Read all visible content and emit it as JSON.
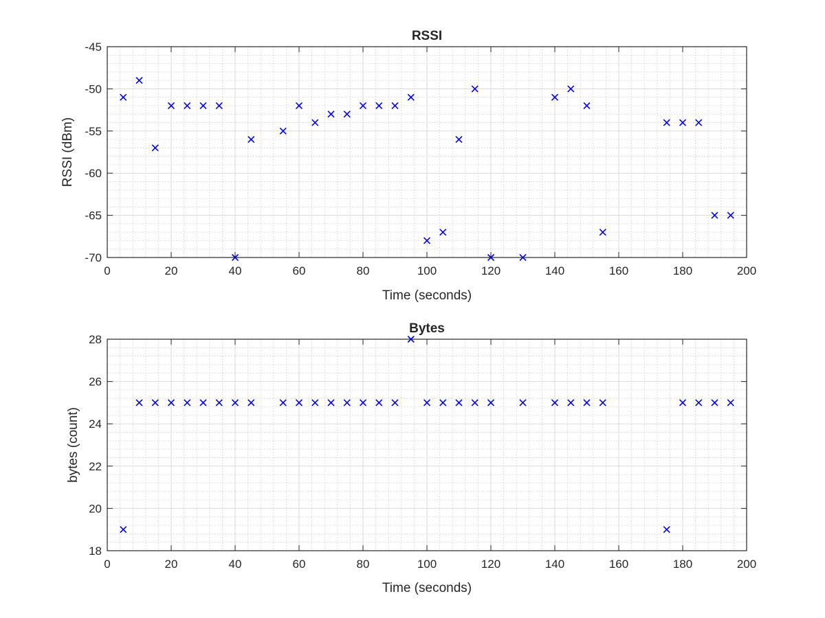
{
  "chart_data": [
    {
      "type": "scatter",
      "id": "rssi",
      "title": "RSSI",
      "xlabel": "Time (seconds)",
      "ylabel": "RSSI (dBm)",
      "xlim": [
        0,
        200
      ],
      "ylim": [
        -70,
        -45
      ],
      "xticks": [
        0,
        20,
        40,
        60,
        80,
        100,
        120,
        140,
        160,
        180,
        200
      ],
      "yticks": [
        -70,
        -65,
        -60,
        -55,
        -50,
        -45
      ],
      "xtick_labels": [
        "0",
        "20",
        "40",
        "60",
        "80",
        "100",
        "120",
        "140",
        "160",
        "180",
        "200"
      ],
      "ytick_labels": [
        "-70",
        "-65",
        "-60",
        "-55",
        "-50",
        "-45"
      ],
      "grid": true,
      "minor_grid": true,
      "marker": "x",
      "color": "#0000ff",
      "x": [
        5,
        10,
        15,
        20,
        25,
        30,
        35,
        40,
        45,
        55,
        60,
        65,
        70,
        75,
        80,
        85,
        90,
        95,
        100,
        105,
        110,
        115,
        120,
        130,
        140,
        145,
        150,
        155,
        175,
        180,
        185,
        190,
        195
      ],
      "y": [
        -51,
        -49,
        -57,
        -52,
        -52,
        -52,
        -52,
        -70,
        -56,
        -55,
        -52,
        -54,
        -53,
        -53,
        -52,
        -52,
        -52,
        -51,
        -68,
        -67,
        -56,
        -50,
        -70,
        -70,
        -51,
        -50,
        -52,
        -67,
        -54,
        -54,
        -54,
        -65,
        -65
      ]
    },
    {
      "type": "scatter",
      "id": "bytes",
      "title": "Bytes",
      "xlabel": "Time (seconds)",
      "ylabel": "bytes (count)",
      "xlim": [
        0,
        200
      ],
      "ylim": [
        18,
        28
      ],
      "xticks": [
        0,
        20,
        40,
        60,
        80,
        100,
        120,
        140,
        160,
        180,
        200
      ],
      "yticks": [
        18,
        20,
        22,
        24,
        26,
        28
      ],
      "xtick_labels": [
        "0",
        "20",
        "40",
        "60",
        "80",
        "100",
        "120",
        "140",
        "160",
        "180",
        "200"
      ],
      "ytick_labels": [
        "18",
        "20",
        "22",
        "24",
        "26",
        "28"
      ],
      "grid": true,
      "minor_grid": true,
      "marker": "x",
      "color": "#0000ff",
      "x": [
        5,
        10,
        15,
        20,
        25,
        30,
        35,
        40,
        45,
        55,
        60,
        65,
        70,
        75,
        80,
        85,
        90,
        95,
        100,
        105,
        110,
        115,
        120,
        130,
        140,
        145,
        150,
        155,
        175,
        180,
        185,
        190,
        195
      ],
      "y": [
        19,
        25,
        25,
        25,
        25,
        25,
        25,
        25,
        25,
        25,
        25,
        25,
        25,
        25,
        25,
        25,
        25,
        28,
        25,
        25,
        25,
        25,
        25,
        25,
        25,
        25,
        25,
        25,
        19,
        25,
        25,
        25,
        25
      ]
    }
  ]
}
